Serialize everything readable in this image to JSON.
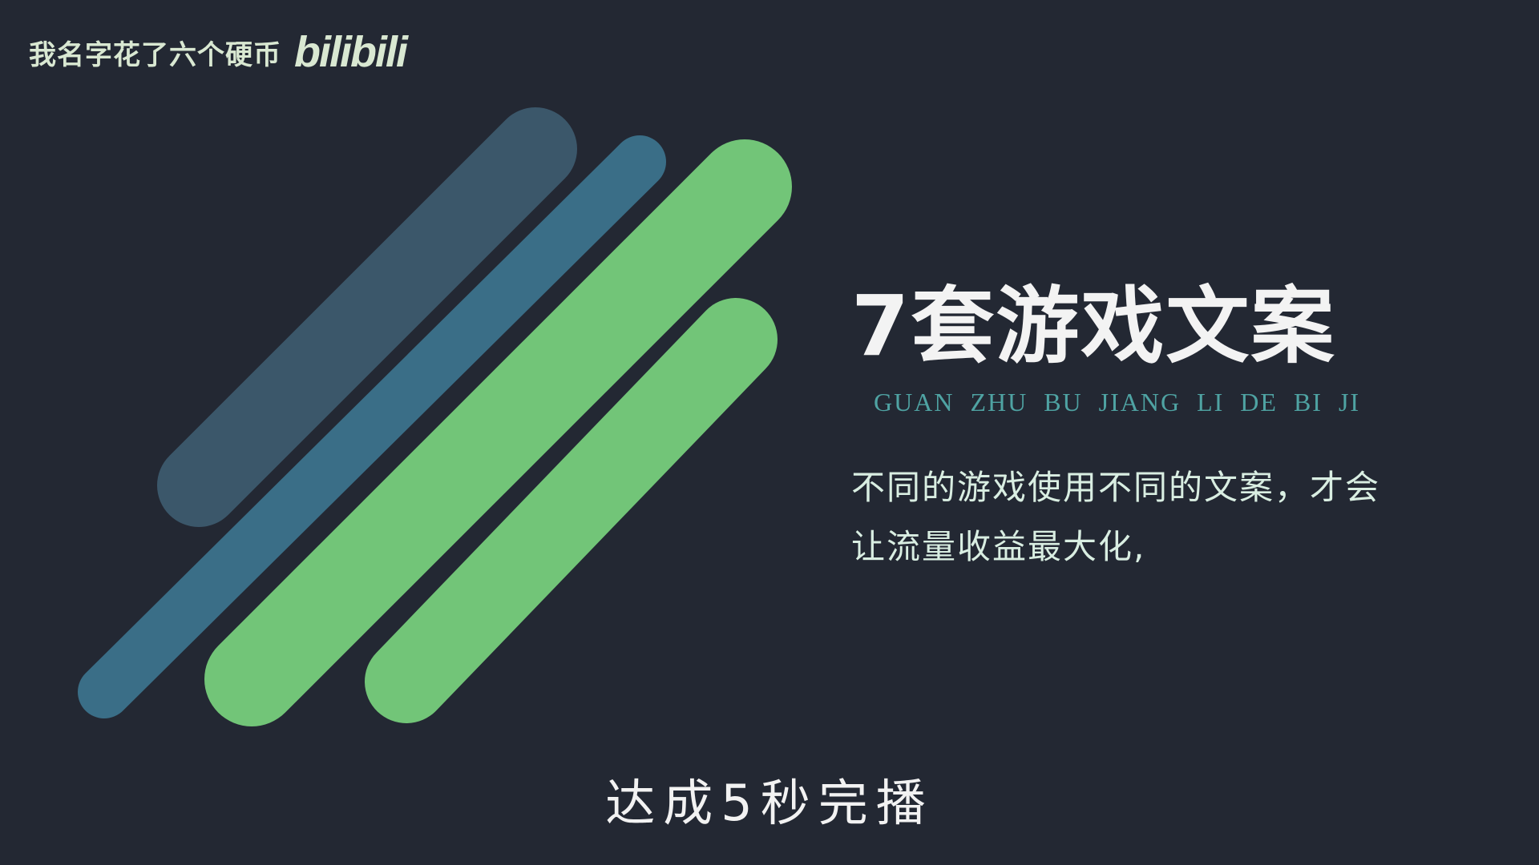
{
  "watermark": {
    "channel_name": "我名字花了六个硬币",
    "logo_text": "bilibili"
  },
  "slide": {
    "title": "7套游戏文案",
    "pinyin": "GUAN ZHU BU JIANG LI DE BI JI",
    "description": "不同的游戏使用不同的文案，才会让流量收益最大化,"
  },
  "subtitle_caption": "达成5秒完播",
  "colors": {
    "background": "#232833",
    "bar_dark_teal": "#3d5a6e",
    "bar_teal": "#3a6e87",
    "bar_green": "#72c578",
    "title": "#f3f3f3",
    "pinyin": "#4fa3a3"
  }
}
